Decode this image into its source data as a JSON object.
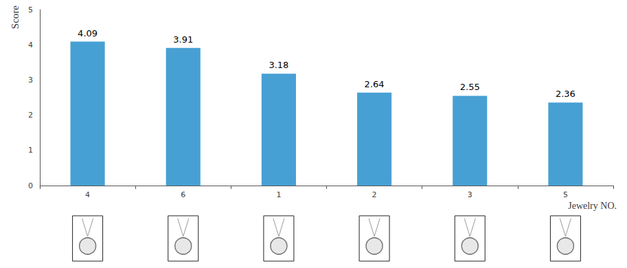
{
  "chart_data": {
    "type": "bar",
    "categories": [
      "4",
      "6",
      "1",
      "2",
      "3",
      "5"
    ],
    "values": [
      4.09,
      3.91,
      3.18,
      2.64,
      2.55,
      2.36
    ],
    "color": "#47a0d3",
    "x_label": "Jewelry NO.",
    "y_label": "Score",
    "ylim": [
      0,
      5
    ],
    "yticks": [
      0,
      1,
      2,
      3,
      4,
      5
    ],
    "grid": false,
    "data_labels": true
  }
}
